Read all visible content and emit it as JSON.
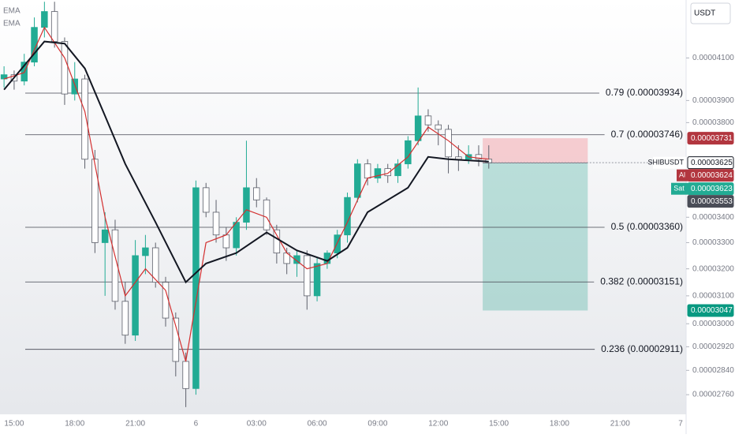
{
  "chart_data": {
    "type": "candlestick",
    "currency": "USDT",
    "log_scale": true,
    "ema_labels": [
      "EMA",
      "EMA"
    ],
    "xlim": [
      14.3,
      48.27
    ],
    "ylim": [
      2.697e-05,
      4.389e-05
    ],
    "xticks": [
      {
        "value": 15,
        "label": "15:00"
      },
      {
        "value": 18,
        "label": "18:00"
      },
      {
        "value": 21,
        "label": "21:00"
      },
      {
        "value": 24,
        "label": "6"
      },
      {
        "value": 27,
        "label": "03:00"
      },
      {
        "value": 30,
        "label": "06:00"
      },
      {
        "value": 33,
        "label": "09:00"
      },
      {
        "value": 36,
        "label": "12:00"
      },
      {
        "value": 39,
        "label": "15:00"
      },
      {
        "value": 42,
        "label": "18:00"
      },
      {
        "value": 45,
        "label": "21:00"
      },
      {
        "value": 48,
        "label": "7"
      }
    ],
    "yticks": [
      {
        "value": 4.1e-05,
        "label": "0.00004100"
      },
      {
        "value": 3.9e-05,
        "label": "0.00003900"
      },
      {
        "value": 3.8e-05,
        "label": "0.00003800"
      },
      {
        "value": 3.4e-05,
        "label": "0.00003400"
      },
      {
        "value": 3.3e-05,
        "label": "0.00003300"
      },
      {
        "value": 3.2e-05,
        "label": "0.00003200"
      },
      {
        "value": 3.1e-05,
        "label": "0.00003100"
      },
      {
        "value": 3e-05,
        "label": "0.00003000"
      },
      {
        "value": 2.92e-05,
        "label": "0.00002920"
      },
      {
        "value": 2.84e-05,
        "label": "0.00002840"
      },
      {
        "value": 2.76e-05,
        "label": "0.00002760"
      }
    ],
    "up_color": "#22ab94",
    "down_color": "#ffffff",
    "x": [
      14.5,
      15,
      15.5,
      16,
      16.5,
      17,
      17.5,
      18,
      18.5,
      19,
      19.5,
      20,
      20.5,
      21,
      21.5,
      22,
      22.5,
      23,
      23.5,
      24,
      24.5,
      25,
      25.5,
      26,
      26.5,
      27,
      27.5,
      28,
      28.5,
      29,
      29.5,
      30,
      30.5,
      31,
      31.5,
      32,
      32.5,
      33,
      33.5,
      34,
      34.5,
      35,
      35.5,
      36,
      36.5,
      37,
      37.5,
      38,
      38.5
    ],
    "open": [
      4e-05,
      4.02e-05,
      3.99e-05,
      4.08e-05,
      4.25e-05,
      4.33e-05,
      4.18e-05,
      3.93e-05,
      4e-05,
      3.64e-05,
      3.3e-05,
      3.35e-05,
      3.08e-05,
      2.96e-05,
      3.25e-05,
      3.28e-05,
      3.15e-05,
      3.02e-05,
      2.87e-05,
      2.78e-05,
      3.52e-05,
      3.42e-05,
      3.33e-05,
      3.28e-05,
      3.38e-05,
      3.52e-05,
      3.47e-05,
      3.35e-05,
      3.26e-05,
      3.22e-05,
      3.25e-05,
      3.1e-05,
      3.22e-05,
      3.26e-05,
      3.33e-05,
      3.48e-05,
      3.62e-05,
      3.56e-05,
      3.6e-05,
      3.57e-05,
      3.62e-05,
      3.72e-05,
      3.83e-05,
      3.79e-05,
      3.77e-05,
      3.65e-05,
      3.64e-05,
      3.66e-05,
      3.64e-05
    ],
    "high": [
      4.06e-05,
      4.04e-05,
      4.12e-05,
      4.3e-05,
      4.38e-05,
      4.38e-05,
      4.2e-05,
      4.08e-05,
      4.02e-05,
      3.68e-05,
      3.42e-05,
      3.39e-05,
      3.15e-05,
      3.31e-05,
      3.33e-05,
      3.3e-05,
      3.17e-05,
      3.04e-05,
      2.9e-05,
      3.55e-05,
      3.54e-05,
      3.47e-05,
      3.36e-05,
      3.4e-05,
      3.72e-05,
      3.56e-05,
      3.48e-05,
      3.37e-05,
      3.28e-05,
      3.27e-05,
      3.27e-05,
      3.24e-05,
      3.27e-05,
      3.35e-05,
      3.5e-05,
      3.64e-05,
      3.64e-05,
      3.62e-05,
      3.62e-05,
      3.64e-05,
      3.74e-05,
      3.96e-05,
      3.86e-05,
      3.81e-05,
      3.79e-05,
      3.7e-05,
      3.7e-05,
      3.7e-05,
      3.7e-05
    ],
    "low": [
      3.96e-05,
      3.95e-05,
      3.97e-05,
      4.06e-05,
      4.2e-05,
      4.15e-05,
      3.88e-05,
      3.9e-05,
      3.6e-05,
      3.26e-05,
      3.1e-05,
      3.05e-05,
      2.93e-05,
      2.94e-05,
      3.18e-05,
      3.13e-05,
      2.99e-05,
      2.82e-05,
      2.72e-05,
      2.76e-05,
      3.4e-05,
      3.3e-05,
      3.23e-05,
      3.25e-05,
      3.35e-05,
      3.44e-05,
      3.33e-05,
      3.22e-05,
      3.18e-05,
      3.17e-05,
      3.05e-05,
      3.08e-05,
      3.2e-05,
      3.24e-05,
      3.3e-05,
      3.46e-05,
      3.53e-05,
      3.54e-05,
      3.54e-05,
      3.54e-05,
      3.6e-05,
      3.7e-05,
      3.76e-05,
      3.7e-05,
      3.58e-05,
      3.59e-05,
      3.62e-05,
      3.61e-05,
      3.6e-05
    ],
    "close": [
      4.02e-05,
      3.99e-05,
      4.08e-05,
      4.25e-05,
      4.33e-05,
      4.18e-05,
      3.93e-05,
      4e-05,
      3.64e-05,
      3.3e-05,
      3.35e-05,
      3.08e-05,
      2.96e-05,
      3.25e-05,
      3.28e-05,
      3.15e-05,
      3.02e-05,
      2.87e-05,
      2.78e-05,
      3.52e-05,
      3.42e-05,
      3.33e-05,
      3.28e-05,
      3.38e-05,
      3.52e-05,
      3.47e-05,
      3.35e-05,
      3.26e-05,
      3.22e-05,
      3.25e-05,
      3.1e-05,
      3.22e-05,
      3.26e-05,
      3.33e-05,
      3.48e-05,
      3.62e-05,
      3.56e-05,
      3.6e-05,
      3.57e-05,
      3.62e-05,
      3.72e-05,
      3.83e-05,
      3.79e-05,
      3.77e-05,
      3.65e-05,
      3.64e-05,
      3.66e-05,
      3.64e-05,
      3.625e-05
    ],
    "emas": [
      {
        "color": "#d32f2f",
        "x": [
          14.5,
          15.5,
          16.5,
          17.5,
          18.5,
          19.5,
          20.5,
          21.5,
          22.5,
          23.5,
          24.5,
          25.5,
          26.5,
          27.5,
          28.5,
          29.5,
          30.5,
          31.5,
          32.5,
          33.5,
          34.5,
          35.5,
          36.5,
          37.5,
          38.5
        ],
        "values": [
          4e-05,
          4.03e-05,
          4.25e-05,
          4.1e-05,
          3.85e-05,
          3.4e-05,
          3.1e-05,
          3.2e-05,
          3.12e-05,
          2.87e-05,
          3.3e-05,
          3.33e-05,
          3.43e-05,
          3.4e-05,
          3.26e-05,
          3.2e-05,
          3.22e-05,
          3.38e-05,
          3.56e-05,
          3.58e-05,
          3.65e-05,
          3.78e-05,
          3.72e-05,
          3.65e-05,
          3.64e-05
        ]
      },
      {
        "color": "#131722",
        "x": [
          14.5,
          16.5,
          17.5,
          18.5,
          19.5,
          20.5,
          22,
          23.5,
          24.5,
          26,
          27.5,
          29,
          30.5,
          31.5,
          32.5,
          34.5,
          35.5,
          36.5,
          38.5
        ],
        "values": [
          3.95e-05,
          4.18e-05,
          4.17e-05,
          4.05e-05,
          3.83e-05,
          3.62e-05,
          3.38e-05,
          3.15e-05,
          3.22e-05,
          3.26e-05,
          3.34e-05,
          3.27e-05,
          3.23e-05,
          3.28e-05,
          3.42e-05,
          3.52e-05,
          3.65e-05,
          3.64e-05,
          3.63e-05
        ]
      }
    ],
    "fib_levels": [
      {
        "value": 3.934e-05,
        "label": "0.79 (0.00003934)"
      },
      {
        "value": 3.746e-05,
        "label": "0.7 (0.00003746)"
      },
      {
        "value": 3.36e-05,
        "label": "0.5 (0.00003360)"
      },
      {
        "value": 3.151e-05,
        "label": "0.382 (0.00003151)"
      },
      {
        "value": 2.911e-05,
        "label": "0.236 (0.00002911)"
      }
    ],
    "position": {
      "x": [
        38.2,
        43.4
      ],
      "stop": 3.731e-05,
      "entry": 3.624e-05,
      "target": 3.047e-05
    },
    "price_tags": {
      "stop": 3.731e-05,
      "symbol": "SHIBUSDT",
      "last": 3.625e-05,
      "ask_label": "Al",
      "ask": 3.624e-05,
      "bid_label": "Sat",
      "bid": 3.623e-05,
      "ema": 3.553e-05,
      "target": 3.047e-05
    }
  }
}
